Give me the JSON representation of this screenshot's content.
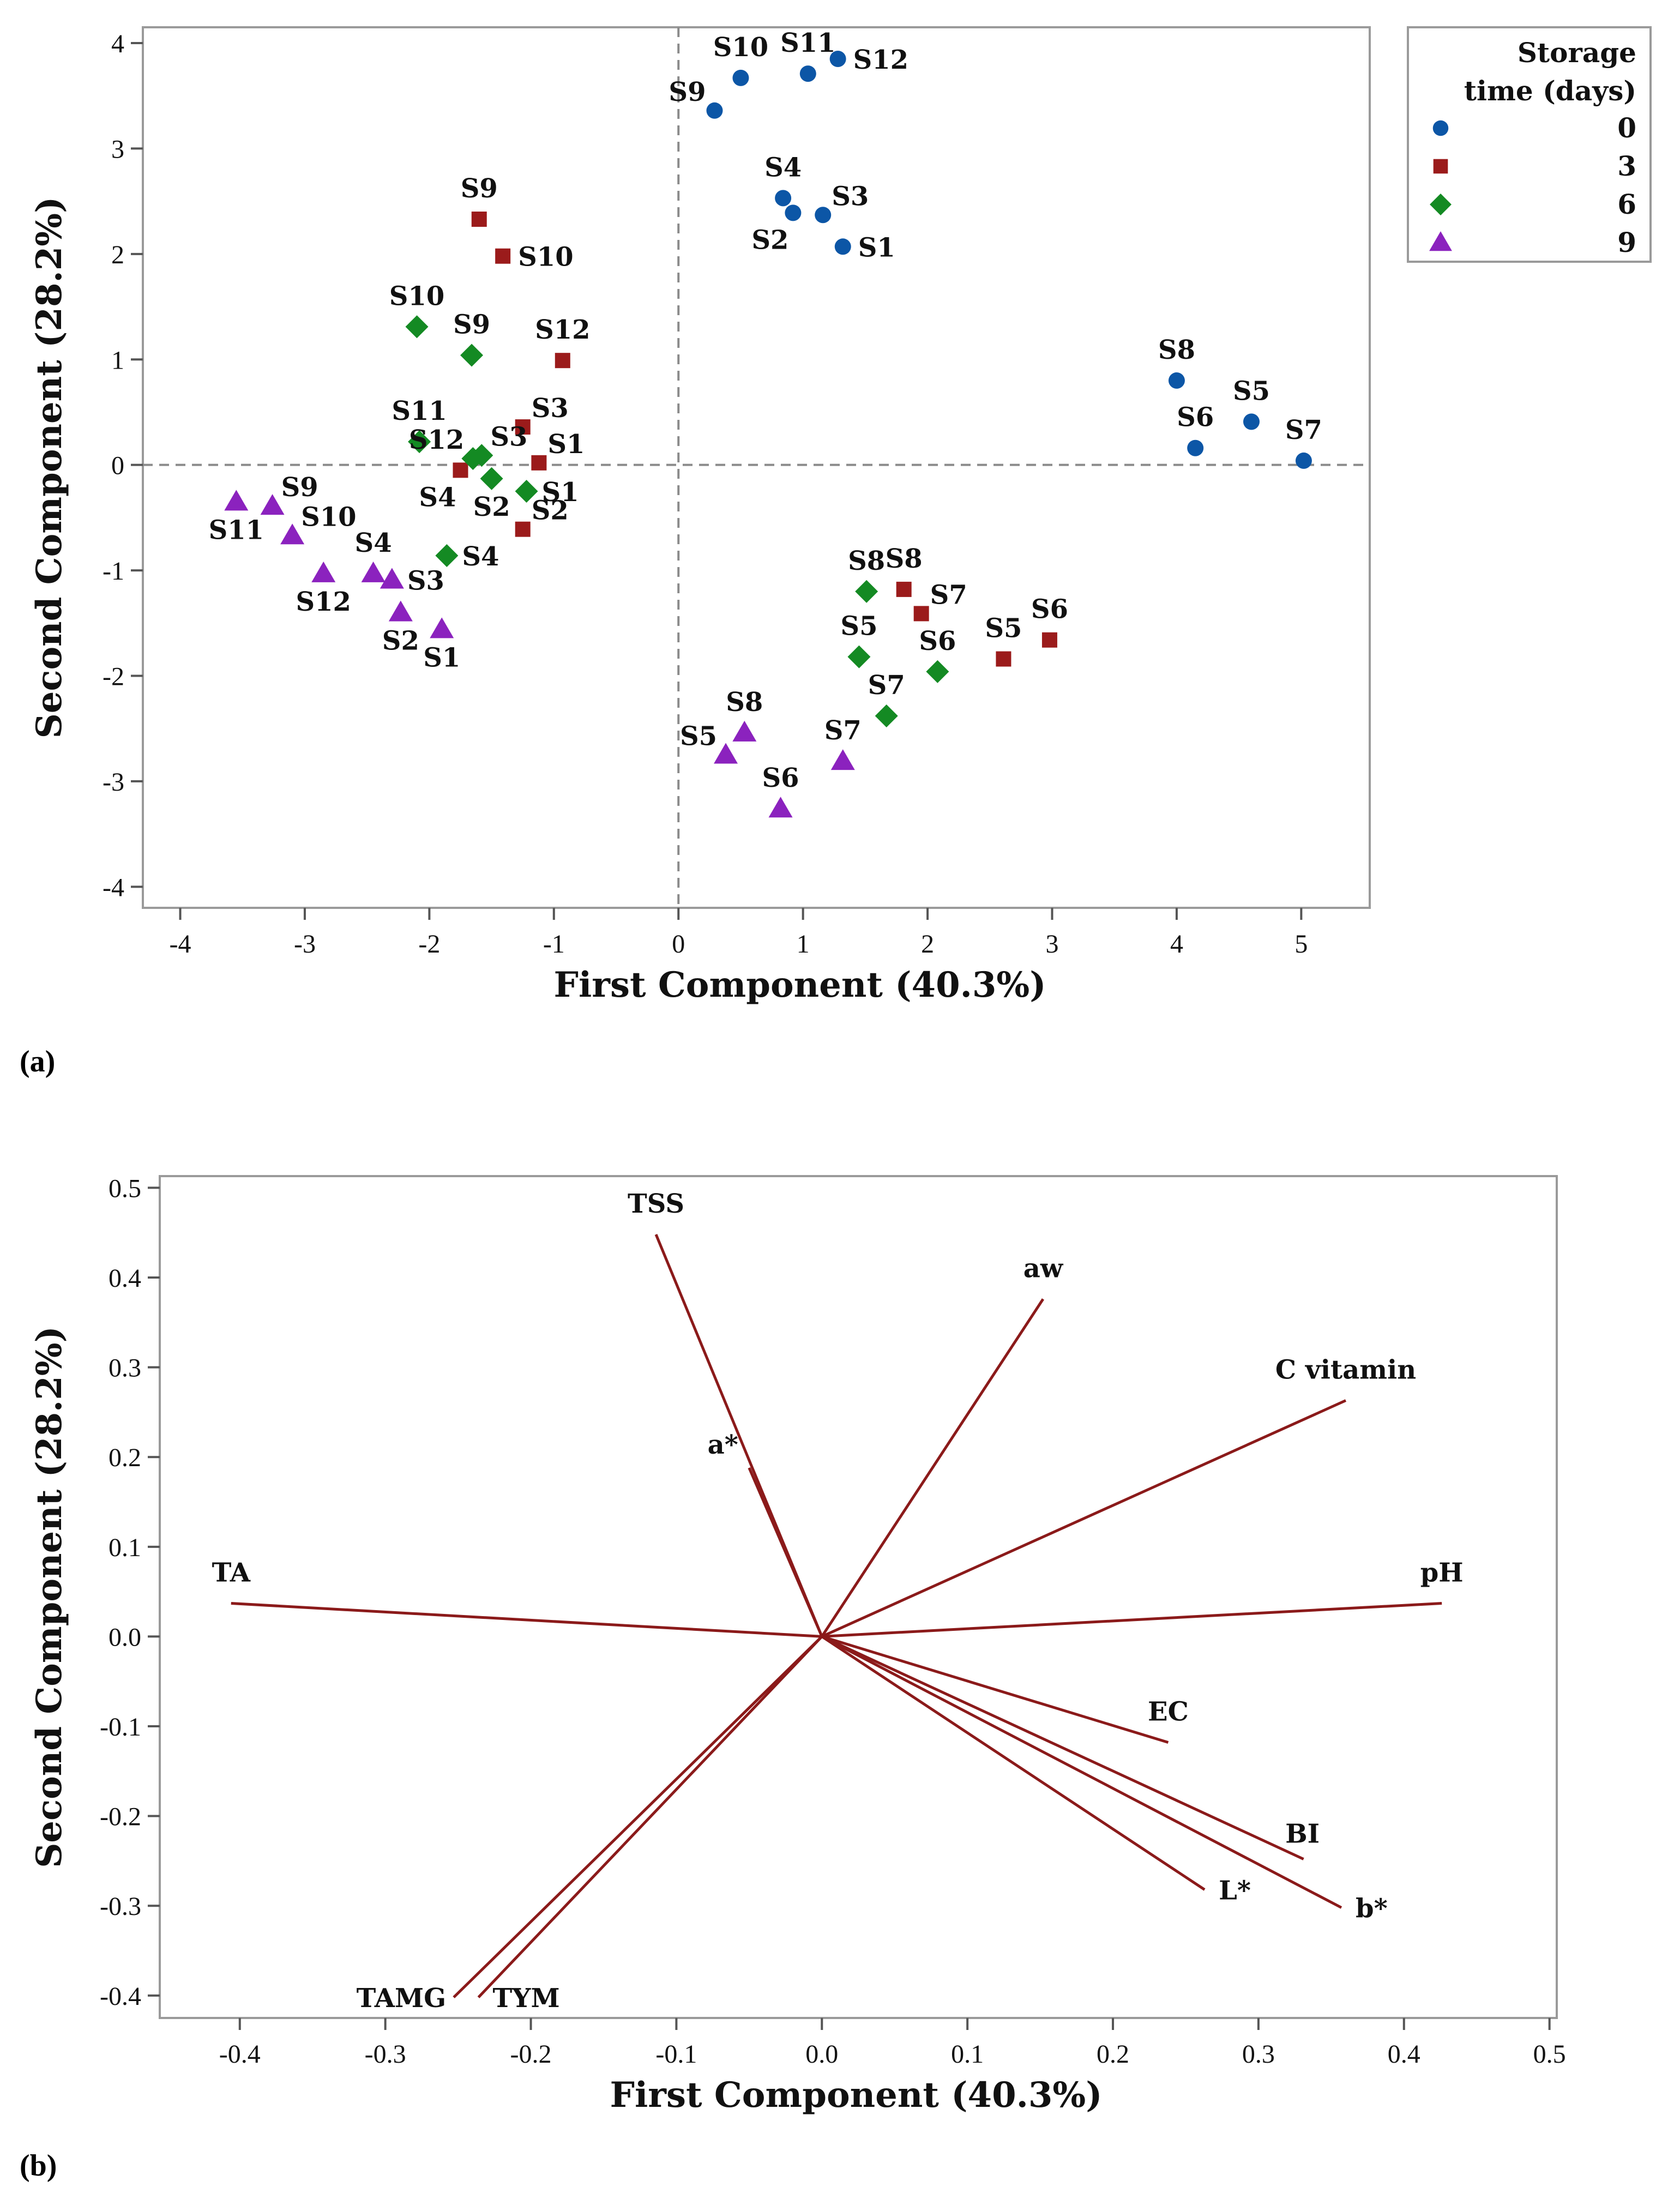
{
  "chart_data": [
    {
      "panel_label": "(a)",
      "type": "scatter",
      "xlabel": "First Component (40.3%)",
      "ylabel": "Second Component (28.2%)",
      "xlim": [
        -4.3,
        5.55
      ],
      "ylim": [
        -4.2,
        4.15
      ],
      "xticks": [
        -4,
        -3,
        -2,
        -1,
        0,
        1,
        2,
        3,
        4,
        5
      ],
      "yticks": [
        -4,
        -3,
        -2,
        -1,
        0,
        1,
        2,
        3,
        4
      ],
      "reference_lines": [
        {
          "axis": "x",
          "value": 0
        },
        {
          "axis": "y",
          "value": 0
        }
      ],
      "legend": {
        "title": [
          "Storage",
          "time (days)"
        ],
        "position": "right",
        "entries": [
          {
            "label": "0",
            "marker": "circle",
            "color": "#0C56A6"
          },
          {
            "label": "3",
            "marker": "square",
            "color": "#9B1B1B"
          },
          {
            "label": "6",
            "marker": "diamond",
            "color": "#148A23"
          },
          {
            "label": "9",
            "marker": "triangle",
            "color": "#8B22BE"
          }
        ]
      },
      "series": [
        {
          "name": "0",
          "marker": "circle",
          "color": "#0C56A6",
          "points": [
            {
              "label": "S1",
              "x": 1.32,
              "y": 2.07,
              "label_pos": "right"
            },
            {
              "label": "S2",
              "x": 0.92,
              "y": 2.39,
              "label_pos": "below-left"
            },
            {
              "label": "S3",
              "x": 1.16,
              "y": 2.37,
              "label_pos": "upper-right"
            },
            {
              "label": "S4",
              "x": 0.84,
              "y": 2.53,
              "label_pos": "above"
            },
            {
              "label": "S5",
              "x": 4.6,
              "y": 0.41,
              "label_pos": "above"
            },
            {
              "label": "S6",
              "x": 4.15,
              "y": 0.16,
              "label_pos": "above"
            },
            {
              "label": "S7",
              "x": 5.02,
              "y": 0.04,
              "label_pos": "above"
            },
            {
              "label": "S8",
              "x": 4.0,
              "y": 0.8,
              "label_pos": "above"
            },
            {
              "label": "S9",
              "x": 0.29,
              "y": 3.36,
              "label_pos": "upper-left"
            },
            {
              "label": "S10",
              "x": 0.5,
              "y": 3.67,
              "label_pos": "above"
            },
            {
              "label": "S11",
              "x": 1.04,
              "y": 3.71,
              "label_pos": "above"
            },
            {
              "label": "S12",
              "x": 1.28,
              "y": 3.85,
              "label_pos": "right"
            }
          ]
        },
        {
          "name": "3",
          "marker": "square",
          "color": "#9B1B1B",
          "points": [
            {
              "label": "S1",
              "x": -1.12,
              "y": 0.02,
              "label_pos": "upper-right"
            },
            {
              "label": "S2",
              "x": -1.25,
              "y": -0.61,
              "label_pos": "upper-right"
            },
            {
              "label": "S3",
              "x": -1.25,
              "y": 0.36,
              "label_pos": "upper-right"
            },
            {
              "label": "S4",
              "x": -1.75,
              "y": -0.05,
              "label_pos": "below-left"
            },
            {
              "label": "S5",
              "x": 2.61,
              "y": -1.84,
              "label_pos": "above"
            },
            {
              "label": "S6",
              "x": 2.98,
              "y": -1.66,
              "label_pos": "above"
            },
            {
              "label": "S7",
              "x": 1.95,
              "y": -1.41,
              "label_pos": "upper-right"
            },
            {
              "label": "S8",
              "x": 1.81,
              "y": -1.18,
              "label_pos": "above"
            },
            {
              "label": "S9",
              "x": -1.6,
              "y": 2.33,
              "label_pos": "above"
            },
            {
              "label": "S10",
              "x": -1.41,
              "y": 1.98,
              "label_pos": "right"
            },
            {
              "label": "S12",
              "x": -0.93,
              "y": 0.99,
              "label_pos": "above"
            }
          ]
        },
        {
          "name": "6",
          "marker": "diamond",
          "color": "#148A23",
          "points": [
            {
              "label": "S1",
              "x": -1.22,
              "y": -0.25,
              "label_pos": "right"
            },
            {
              "label": "S2",
              "x": -1.5,
              "y": -0.13,
              "label_pos": "below"
            },
            {
              "label": "S3",
              "x": -1.58,
              "y": 0.09,
              "label_pos": "upper-right"
            },
            {
              "label": "S4",
              "x": -1.86,
              "y": -0.86,
              "label_pos": "right"
            },
            {
              "label": "S5",
              "x": 1.45,
              "y": -1.82,
              "label_pos": "above"
            },
            {
              "label": "S6",
              "x": 2.08,
              "y": -1.96,
              "label_pos": "above"
            },
            {
              "label": "S7",
              "x": 1.67,
              "y": -2.38,
              "label_pos": "above"
            },
            {
              "label": "S8",
              "x": 1.51,
              "y": -1.2,
              "label_pos": "above"
            },
            {
              "label": "S9",
              "x": -1.66,
              "y": 1.04,
              "label_pos": "above"
            },
            {
              "label": "S10",
              "x": -2.1,
              "y": 1.31,
              "label_pos": "above"
            },
            {
              "label": "S11",
              "x": -2.08,
              "y": 0.22,
              "label_pos": "above"
            },
            {
              "label": "S12",
              "x": -1.65,
              "y": 0.06,
              "label_pos": "upper-left"
            }
          ]
        },
        {
          "name": "9",
          "marker": "triangle",
          "color": "#8B22BE",
          "points": [
            {
              "label": "S1",
              "x": -1.9,
              "y": -1.56,
              "label_pos": "below"
            },
            {
              "label": "S2",
              "x": -2.23,
              "y": -1.4,
              "label_pos": "below"
            },
            {
              "label": "S3",
              "x": -2.3,
              "y": -1.09,
              "label_pos": "right"
            },
            {
              "label": "S4",
              "x": -2.45,
              "y": -1.03,
              "label_pos": "above"
            },
            {
              "label": "S5",
              "x": 0.38,
              "y": -2.75,
              "label_pos": "upper-left"
            },
            {
              "label": "S6",
              "x": 0.82,
              "y": -3.26,
              "label_pos": "above"
            },
            {
              "label": "S7",
              "x": 1.32,
              "y": -2.81,
              "label_pos": "above"
            },
            {
              "label": "S8",
              "x": 0.53,
              "y": -2.54,
              "label_pos": "above"
            },
            {
              "label": "S9",
              "x": -3.26,
              "y": -0.39,
              "label_pos": "upper-right"
            },
            {
              "label": "S10",
              "x": -3.1,
              "y": -0.67,
              "label_pos": "upper-right"
            },
            {
              "label": "S11",
              "x": -3.55,
              "y": -0.35,
              "label_pos": "below"
            },
            {
              "label": "S12",
              "x": -2.85,
              "y": -1.03,
              "label_pos": "below"
            }
          ]
        }
      ]
    },
    {
      "panel_label": "(b)",
      "type": "line",
      "subtype": "loading-plot",
      "xlabel": "First Component (40.3%)",
      "ylabel": "Second Component (28.2%)",
      "xlim": [
        -0.455,
        0.505
      ],
      "ylim": [
        -0.425,
        0.513
      ],
      "xticks": [
        -0.4,
        -0.3,
        -0.2,
        -0.1,
        0.0,
        0.1,
        0.2,
        0.3,
        0.4,
        0.5
      ],
      "xtick_labels": [
        "-0.4",
        "-0.3",
        "-0.2",
        "-0.1",
        "0.0",
        "0.1",
        "0.2",
        "0.3",
        "0.4",
        "0.5"
      ],
      "yticks": [
        -0.4,
        -0.3,
        -0.2,
        -0.1,
        0.0,
        0.1,
        0.2,
        0.3,
        0.4,
        0.5
      ],
      "ytick_labels": [
        "-0.4",
        "-0.3",
        "-0.2",
        "-0.1",
        "0.0",
        "0.1",
        "0.2",
        "0.3",
        "0.4",
        "0.5"
      ],
      "line_color": "#8B1A1A",
      "vectors": [
        {
          "name": "TSS",
          "x": -0.114,
          "y": 0.448,
          "label_pos": "above"
        },
        {
          "name": "aw",
          "x": 0.152,
          "y": 0.376,
          "label_pos": "above"
        },
        {
          "name": "C vitamin",
          "x": 0.36,
          "y": 0.263,
          "label_pos": "above"
        },
        {
          "name": "a*",
          "x": -0.05,
          "y": 0.188,
          "label_pos": "upper-left"
        },
        {
          "name": "TA",
          "x": -0.406,
          "y": 0.037,
          "label_pos": "above"
        },
        {
          "name": "pH",
          "x": 0.426,
          "y": 0.037,
          "label_pos": "above"
        },
        {
          "name": "EC",
          "x": 0.238,
          "y": -0.118,
          "label_pos": "above"
        },
        {
          "name": "BI",
          "x": 0.331,
          "y": -0.248,
          "label_pos": "upper-right"
        },
        {
          "name": "b*",
          "x": 0.357,
          "y": -0.302,
          "label_pos": "right"
        },
        {
          "name": "L*",
          "x": 0.263,
          "y": -0.282,
          "label_pos": "right"
        },
        {
          "name": "TAMG",
          "x": -0.253,
          "y": -0.402,
          "label_pos": "left"
        },
        {
          "name": "TYM",
          "x": -0.236,
          "y": -0.402,
          "label_pos": "right"
        }
      ]
    }
  ]
}
